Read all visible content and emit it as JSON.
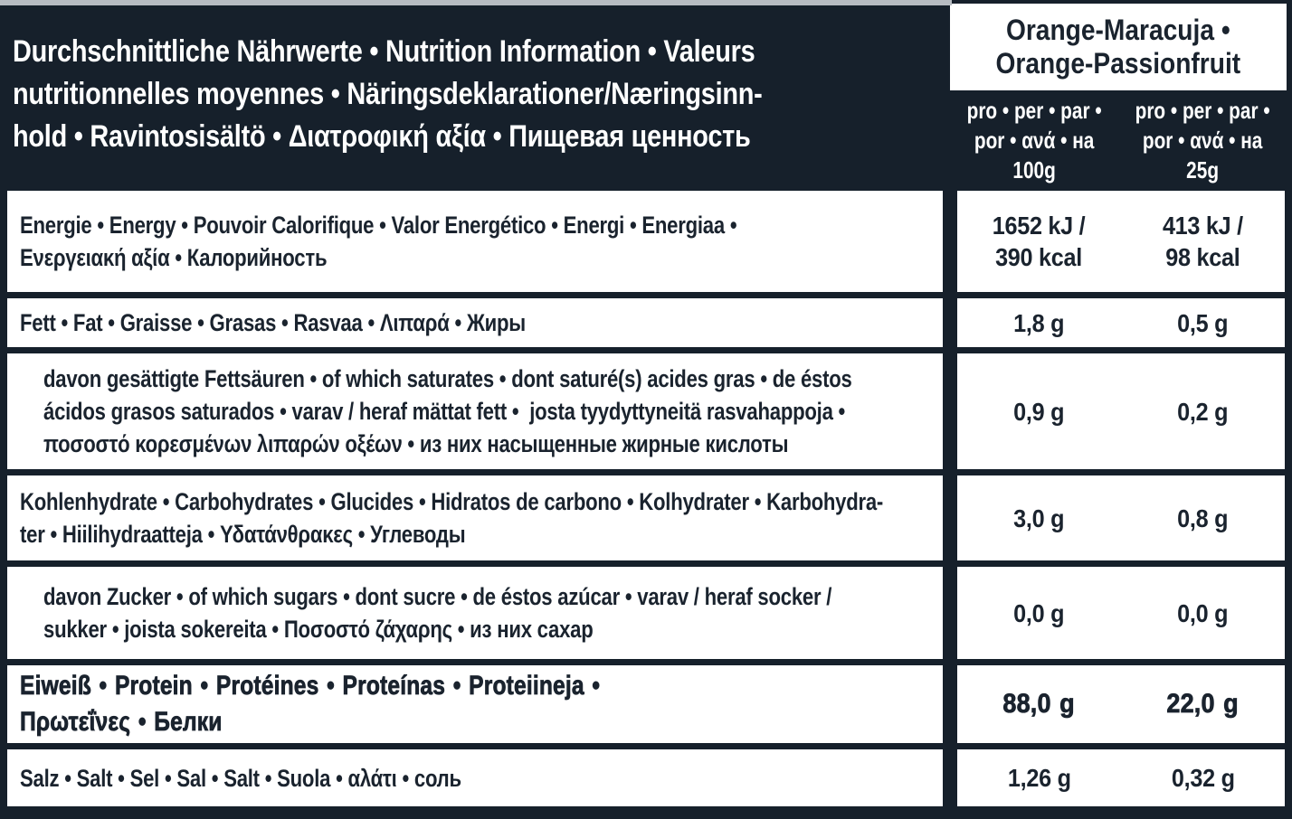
{
  "colors": {
    "background": "#16202b",
    "panel": "#ffffff",
    "text_dark": "#1a232e",
    "text_light": "#ffffff"
  },
  "header": {
    "title": "Durchschnittliche Nährwerte • Nutrition Information • Valeurs\nnutritionnelles moyennes • Näringsdeklarationer/Næringsinn-\nhold • Ravintosisältö • Διατροφική αξία • Пищевая ценность",
    "flavor": "Orange-Maracuja •\nOrange-Passionfruit",
    "per_100g_label": "pro • per • par •\npor • ανά • на\n100g",
    "per_25g_label": "pro • per • par •\npor • ανά • на\n25g"
  },
  "rows": [
    {
      "id": "energy",
      "label": "Energie • Energy • Pouvoir Calorifique • Valor Energético • Energi • Energiaa •\nΕνεργειακή αξία • Калорийность",
      "per_100g": "1652 kJ /\n390 kcal",
      "per_25g": "413 kJ /\n98 kcal"
    },
    {
      "id": "fat",
      "label": "Fett • Fat • Graisse • Grasas • Rasvaa • Λιπαρά • Жиры",
      "per_100g": "1,8 g",
      "per_25g": "0,5 g"
    },
    {
      "id": "saturates",
      "label": "davon gesättigte Fettsäuren • of which saturates • dont saturé(s) acides gras • de éstos\nácidos grasos saturados • varav / heraf mättat fett •  josta tyydyttyneitä rasvahappoja •\nποσοστό κορεσμένων λιπαρών οξέων • из них насыщенные жирные кислоты",
      "per_100g": "0,9 g",
      "per_25g": "0,2 g"
    },
    {
      "id": "carbohydrates",
      "label": "Kohlenhydrate • Carbohydrates • Glucides • Hidratos de carbono • Kolhydrater • Karbohydra-\nter • Hiilihydraatteja • Υδατάνθρακες • Углеводы",
      "per_100g": "3,0 g",
      "per_25g": "0,8 g"
    },
    {
      "id": "sugars",
      "label": "davon Zucker • of which sugars • dont sucre • de éstos azúcar • varav / heraf socker /\nsukker • joista sokereita • Ποσοστό ζάχαρης • из них сахар",
      "per_100g": "0,0 g",
      "per_25g": "0,0 g"
    },
    {
      "id": "protein",
      "label": "Eiweiß • Protein • Protéines • Proteínas • Proteiineja •\nΠρωτεΐνες • Белки",
      "per_100g": "88,0 g",
      "per_25g": "22,0 g"
    },
    {
      "id": "salt",
      "label": "Salz • Salt • Sel • Sal • Salt • Suola • αλάτι • соль",
      "per_100g": "1,26 g",
      "per_25g": "0,32 g"
    }
  ]
}
